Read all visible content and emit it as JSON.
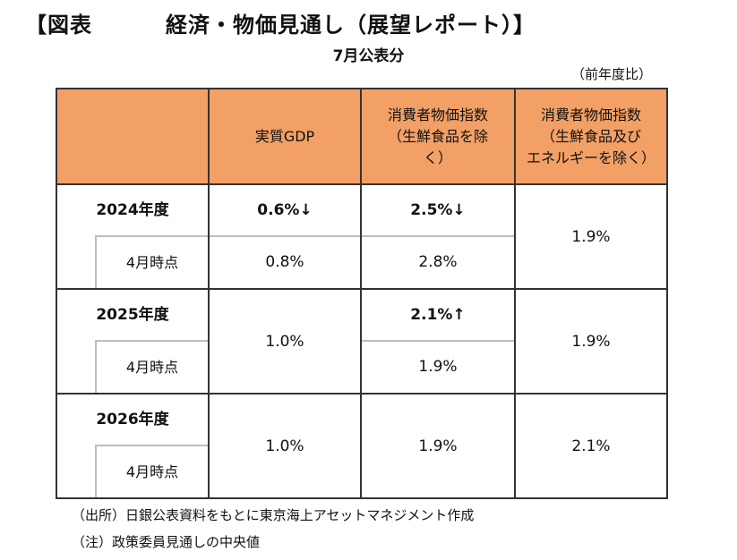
{
  "title_left": "【図表",
  "title_right": "経済・物価見通し（展望レポート）】",
  "subtitle": "7月公表分",
  "unit_note": "（前年度比）",
  "headers": [
    "",
    "実質GDP",
    "消費者物価指数（生鮮食品を除く）",
    "消費者物価指数（生鮮食品及びエネルギーを除く）"
  ],
  "header_lines": {
    "col1": [
      "実質GDP"
    ],
    "col2": [
      "消費者物価指数",
      "（生鮮食品を除",
      "く）"
    ],
    "col3": [
      "消費者物価指数",
      "（生鮮食品及び",
      "エネルギーを除く）"
    ]
  },
  "rows": [
    {
      "year": "2024年度",
      "sub_label": "4月時点",
      "gdp_july": "0.6%↓",
      "gdp_april": "0.8%",
      "cpi_july": "2.5%↓",
      "cpi_april": "2.8%",
      "core_cpi": "1.9%"
    },
    {
      "year": "2025年度",
      "sub_label": "4月時点",
      "gdp": "1.0%",
      "cpi_july": "2.1%↑",
      "cpi_april": "1.9%",
      "core_cpi": "1.9%"
    },
    {
      "year": "2026年度",
      "sub_label": "4月時点",
      "gdp": "1.0%",
      "cpi": "1.9%",
      "core_cpi": "2.1%"
    }
  ],
  "footnotes": [
    "（出所）日銀公表資料をもとに東京海上アセットマネジメント作成",
    "（注）政策委員見通しの中央値"
  ],
  "colors": {
    "header_bg": "#f2a066",
    "border": "#333333",
    "sub_divider": "#bdbdbd"
  }
}
